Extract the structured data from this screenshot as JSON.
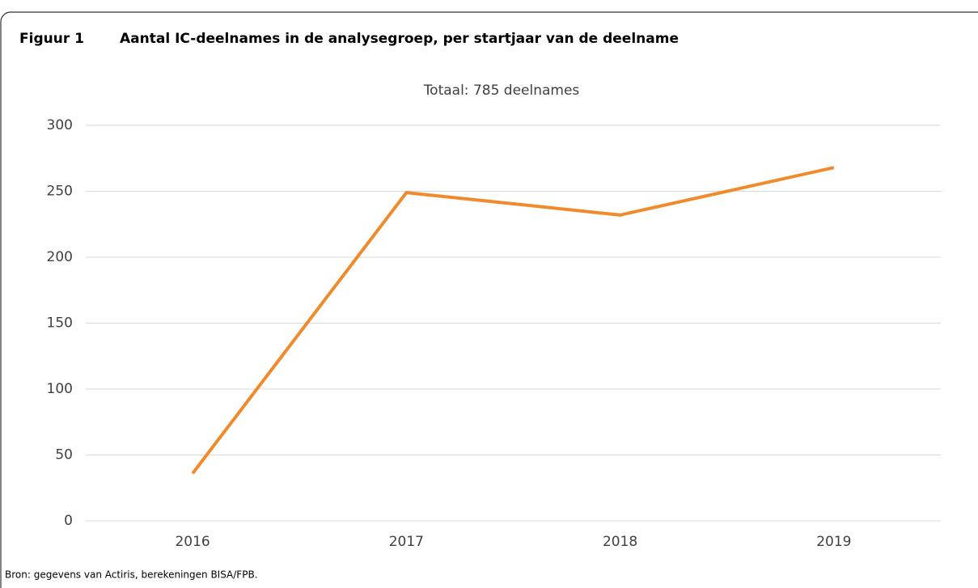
{
  "chart_data": {
    "type": "line",
    "figure_label": "Figuur 1",
    "title": "Aantal IC-deelnames in de analysegroep, per startjaar van de deelname",
    "subtitle": "Totaal: 785 deelnames",
    "source": "Bron: gegevens van Actiris, berekeningen BISA/FPB.",
    "categories": [
      "2016",
      "2017",
      "2018",
      "2019"
    ],
    "values": [
      36,
      249,
      232,
      268
    ],
    "color": "#f08a2a",
    "ylim": [
      0,
      300
    ],
    "yticks": [
      0,
      50,
      100,
      150,
      200,
      250,
      300
    ],
    "grid": true
  }
}
